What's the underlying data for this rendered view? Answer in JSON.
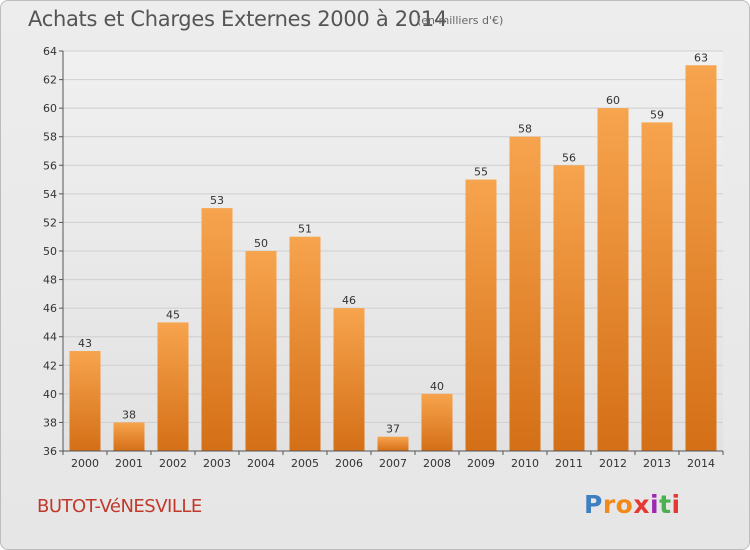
{
  "header": {
    "title": "Achats et Charges Externes 2000 à 2014",
    "subtitle": "(en milliers d'€)"
  },
  "footer": {
    "commune": "BUTOT-VéNESVILLE",
    "logo_letters": [
      "P",
      "r",
      "o",
      "x",
      "i",
      "t",
      "i"
    ],
    "logo_colors": [
      "#3f7fc1",
      "#f08a1c",
      "#f08a1c",
      "#e53935",
      "#9c27b0",
      "#4caf50",
      "#e53935"
    ]
  },
  "chart_data": {
    "type": "bar",
    "categories": [
      "2000",
      "2001",
      "2002",
      "2003",
      "2004",
      "2005",
      "2006",
      "2007",
      "2008",
      "2009",
      "2010",
      "2011",
      "2012",
      "2013",
      "2014"
    ],
    "values": [
      43,
      38,
      45,
      53,
      50,
      51,
      46,
      37,
      40,
      55,
      58,
      56,
      60,
      59,
      63
    ],
    "title": "Achats et Charges Externes 2000 à 2014",
    "subtitle": "(en milliers d'€)",
    "ylim": [
      36,
      64
    ],
    "yticks": [
      36,
      38,
      40,
      42,
      44,
      46,
      48,
      50,
      52,
      54,
      56,
      58,
      60,
      62,
      64
    ],
    "grid": true,
    "bar_color": "#f28e2b",
    "bar_color_dark": "#d9731a"
  }
}
